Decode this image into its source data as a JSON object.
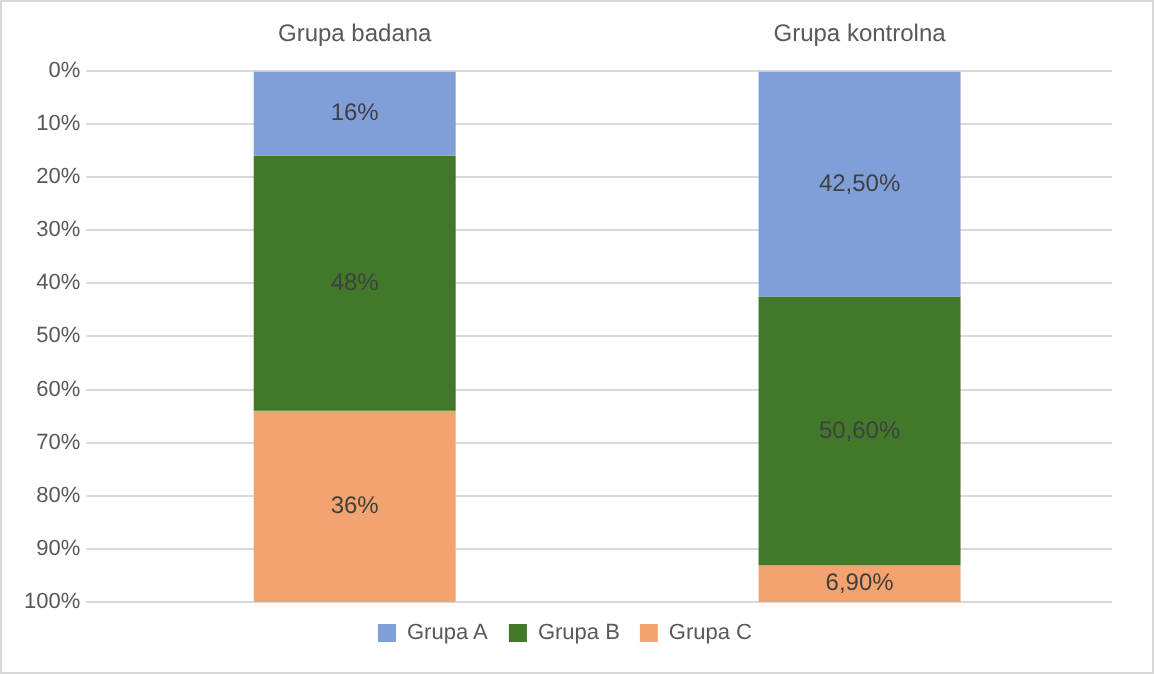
{
  "chart_data": {
    "type": "bar",
    "stacked": true,
    "categories": [
      "Grupa badana",
      "Grupa kontrolna"
    ],
    "series": [
      {
        "name": "Grupa A",
        "color": "#809fd9",
        "values": [
          16,
          42.5
        ],
        "value_labels": [
          "16%",
          "42,50%"
        ]
      },
      {
        "name": "Grupa B",
        "color": "#41782a",
        "values": [
          48,
          50.6
        ],
        "value_labels": [
          "48%",
          "50,60%"
        ]
      },
      {
        "name": "Grupa C",
        "color": "#f3a36f",
        "values": [
          36,
          6.9
        ],
        "value_labels": [
          "36%",
          "6,90%"
        ]
      }
    ],
    "ylim": [
      100,
      0
    ],
    "yticks": [
      {
        "value": 0,
        "label": "0%"
      },
      {
        "value": 10,
        "label": "10%"
      },
      {
        "value": 20,
        "label": "20%"
      },
      {
        "value": 30,
        "label": "30%"
      },
      {
        "value": 40,
        "label": "40%"
      },
      {
        "value": 50,
        "label": "50%"
      },
      {
        "value": 60,
        "label": "60%"
      },
      {
        "value": 70,
        "label": "70%"
      },
      {
        "value": 80,
        "label": "80%"
      },
      {
        "value": 90,
        "label": "90%"
      },
      {
        "value": 100,
        "label": "100%"
      }
    ],
    "grid": "y",
    "legend": "bottom"
  }
}
